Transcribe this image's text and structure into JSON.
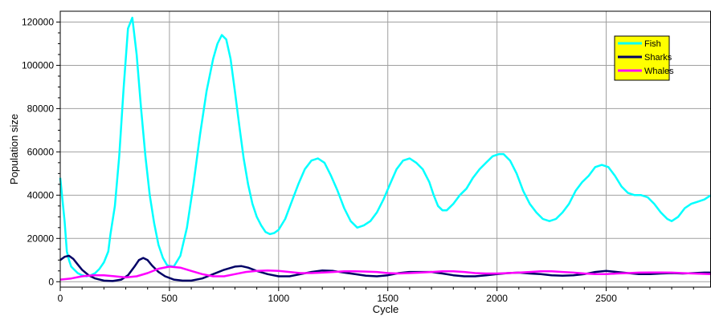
{
  "chart_data": {
    "type": "line",
    "title": "",
    "xlabel": "Cycle",
    "ylabel": "Population size",
    "xlim": [
      0,
      2980
    ],
    "ylim": [
      -2500,
      125000
    ],
    "xticks": [
      0,
      500,
      1000,
      1500,
      2000,
      2500
    ],
    "yticks": [
      0,
      20000,
      40000,
      60000,
      80000,
      100000,
      120000
    ],
    "grid": true,
    "legend_position": "top-right",
    "series": [
      {
        "name": "Fish",
        "color": "#00ffff",
        "points": [
          [
            0,
            48000
          ],
          [
            10,
            38000
          ],
          [
            20,
            28000
          ],
          [
            30,
            14000
          ],
          [
            40,
            10000
          ],
          [
            50,
            7000
          ],
          [
            60,
            6000
          ],
          [
            80,
            4000
          ],
          [
            100,
            3000
          ],
          [
            120,
            2500
          ],
          [
            140,
            3000
          ],
          [
            160,
            4000
          ],
          [
            180,
            6000
          ],
          [
            200,
            9000
          ],
          [
            220,
            14000
          ],
          [
            230,
            22000
          ],
          [
            250,
            35000
          ],
          [
            270,
            58000
          ],
          [
            290,
            89000
          ],
          [
            310,
            117000
          ],
          [
            330,
            122000
          ],
          [
            350,
            105000
          ],
          [
            370,
            80000
          ],
          [
            390,
            58000
          ],
          [
            410,
            40000
          ],
          [
            430,
            27000
          ],
          [
            450,
            17000
          ],
          [
            470,
            11000
          ],
          [
            490,
            7500
          ],
          [
            520,
            7000
          ],
          [
            550,
            12000
          ],
          [
            580,
            25000
          ],
          [
            610,
            45000
          ],
          [
            640,
            68000
          ],
          [
            670,
            88000
          ],
          [
            700,
            103000
          ],
          [
            720,
            110000
          ],
          [
            740,
            114000
          ],
          [
            760,
            112000
          ],
          [
            780,
            103000
          ],
          [
            800,
            88000
          ],
          [
            820,
            72000
          ],
          [
            840,
            57000
          ],
          [
            860,
            45000
          ],
          [
            880,
            36000
          ],
          [
            900,
            30000
          ],
          [
            920,
            26000
          ],
          [
            940,
            23000
          ],
          [
            960,
            22000
          ],
          [
            980,
            22500
          ],
          [
            1000,
            24000
          ],
          [
            1030,
            29000
          ],
          [
            1060,
            37000
          ],
          [
            1090,
            45000
          ],
          [
            1120,
            52000
          ],
          [
            1150,
            56000
          ],
          [
            1180,
            57000
          ],
          [
            1210,
            55000
          ],
          [
            1240,
            49000
          ],
          [
            1270,
            42000
          ],
          [
            1300,
            34000
          ],
          [
            1330,
            28000
          ],
          [
            1360,
            25000
          ],
          [
            1390,
            26000
          ],
          [
            1420,
            28000
          ],
          [
            1450,
            32000
          ],
          [
            1480,
            38000
          ],
          [
            1510,
            45000
          ],
          [
            1540,
            52000
          ],
          [
            1570,
            56000
          ],
          [
            1600,
            57000
          ],
          [
            1630,
            55000
          ],
          [
            1660,
            52000
          ],
          [
            1690,
            46000
          ],
          [
            1710,
            40000
          ],
          [
            1730,
            35000
          ],
          [
            1750,
            33000
          ],
          [
            1770,
            33000
          ],
          [
            1800,
            36000
          ],
          [
            1830,
            40000
          ],
          [
            1860,
            43000
          ],
          [
            1890,
            48000
          ],
          [
            1920,
            52000
          ],
          [
            1950,
            55000
          ],
          [
            1980,
            58000
          ],
          [
            2010,
            59000
          ],
          [
            2030,
            59000
          ],
          [
            2060,
            56000
          ],
          [
            2090,
            50000
          ],
          [
            2120,
            42000
          ],
          [
            2150,
            36000
          ],
          [
            2180,
            32000
          ],
          [
            2210,
            29000
          ],
          [
            2240,
            28000
          ],
          [
            2270,
            29000
          ],
          [
            2300,
            32000
          ],
          [
            2330,
            36000
          ],
          [
            2360,
            42000
          ],
          [
            2390,
            46000
          ],
          [
            2420,
            49000
          ],
          [
            2450,
            53000
          ],
          [
            2480,
            54000
          ],
          [
            2510,
            53000
          ],
          [
            2540,
            49000
          ],
          [
            2570,
            44000
          ],
          [
            2600,
            41000
          ],
          [
            2630,
            40000
          ],
          [
            2660,
            40000
          ],
          [
            2690,
            39000
          ],
          [
            2720,
            36000
          ],
          [
            2750,
            32000
          ],
          [
            2780,
            29000
          ],
          [
            2800,
            28000
          ],
          [
            2830,
            30000
          ],
          [
            2860,
            34000
          ],
          [
            2890,
            36000
          ],
          [
            2920,
            37000
          ],
          [
            2950,
            38000
          ],
          [
            2980,
            40000
          ]
        ]
      },
      {
        "name": "Sharks",
        "color": "#000066",
        "points": [
          [
            0,
            10000
          ],
          [
            20,
            11500
          ],
          [
            40,
            12000
          ],
          [
            60,
            10500
          ],
          [
            80,
            8000
          ],
          [
            100,
            5500
          ],
          [
            130,
            3000
          ],
          [
            160,
            1500
          ],
          [
            200,
            500
          ],
          [
            240,
            300
          ],
          [
            280,
            1000
          ],
          [
            310,
            3000
          ],
          [
            340,
            7000
          ],
          [
            360,
            10000
          ],
          [
            380,
            11000
          ],
          [
            400,
            10000
          ],
          [
            420,
            7500
          ],
          [
            450,
            4500
          ],
          [
            480,
            2500
          ],
          [
            520,
            1000
          ],
          [
            560,
            500
          ],
          [
            600,
            500
          ],
          [
            650,
            1500
          ],
          [
            700,
            3500
          ],
          [
            750,
            5500
          ],
          [
            800,
            7000
          ],
          [
            830,
            7200
          ],
          [
            860,
            6500
          ],
          [
            900,
            5000
          ],
          [
            950,
            3500
          ],
          [
            1000,
            2500
          ],
          [
            1050,
            2500
          ],
          [
            1100,
            3500
          ],
          [
            1150,
            4500
          ],
          [
            1200,
            5200
          ],
          [
            1250,
            5000
          ],
          [
            1300,
            4200
          ],
          [
            1350,
            3500
          ],
          [
            1400,
            2800
          ],
          [
            1450,
            2500
          ],
          [
            1500,
            3000
          ],
          [
            1550,
            4000
          ],
          [
            1600,
            4500
          ],
          [
            1650,
            4500
          ],
          [
            1700,
            4500
          ],
          [
            1750,
            3800
          ],
          [
            1800,
            3000
          ],
          [
            1850,
            2500
          ],
          [
            1900,
            2500
          ],
          [
            1950,
            3000
          ],
          [
            2000,
            3500
          ],
          [
            2050,
            4000
          ],
          [
            2100,
            4200
          ],
          [
            2150,
            3800
          ],
          [
            2200,
            3500
          ],
          [
            2250,
            3000
          ],
          [
            2300,
            2800
          ],
          [
            2350,
            3000
          ],
          [
            2400,
            3500
          ],
          [
            2450,
            4500
          ],
          [
            2500,
            5000
          ],
          [
            2550,
            4500
          ],
          [
            2600,
            4000
          ],
          [
            2650,
            3500
          ],
          [
            2700,
            3500
          ],
          [
            2750,
            3800
          ],
          [
            2800,
            4000
          ],
          [
            2850,
            3800
          ],
          [
            2900,
            4000
          ],
          [
            2950,
            4200
          ],
          [
            2980,
            4200
          ]
        ]
      },
      {
        "name": "Whales",
        "color": "#ff00ff",
        "points": [
          [
            0,
            1000
          ],
          [
            50,
            1500
          ],
          [
            100,
            2500
          ],
          [
            150,
            3000
          ],
          [
            200,
            3000
          ],
          [
            250,
            2500
          ],
          [
            300,
            2000
          ],
          [
            350,
            2500
          ],
          [
            400,
            4000
          ],
          [
            450,
            6000
          ],
          [
            500,
            7000
          ],
          [
            550,
            6500
          ],
          [
            600,
            5000
          ],
          [
            650,
            3500
          ],
          [
            700,
            2500
          ],
          [
            750,
            2500
          ],
          [
            800,
            3500
          ],
          [
            850,
            4500
          ],
          [
            900,
            5000
          ],
          [
            950,
            5200
          ],
          [
            1000,
            5000
          ],
          [
            1050,
            4500
          ],
          [
            1100,
            4000
          ],
          [
            1150,
            4000
          ],
          [
            1200,
            4200
          ],
          [
            1250,
            4500
          ],
          [
            1300,
            4800
          ],
          [
            1350,
            4800
          ],
          [
            1400,
            4700
          ],
          [
            1450,
            4500
          ],
          [
            1500,
            4000
          ],
          [
            1550,
            3800
          ],
          [
            1600,
            4000
          ],
          [
            1650,
            4200
          ],
          [
            1700,
            4500
          ],
          [
            1750,
            4800
          ],
          [
            1800,
            4800
          ],
          [
            1850,
            4500
          ],
          [
            1900,
            4000
          ],
          [
            1950,
            3800
          ],
          [
            2000,
            3800
          ],
          [
            2050,
            4000
          ],
          [
            2100,
            4200
          ],
          [
            2150,
            4500
          ],
          [
            2200,
            4800
          ],
          [
            2250,
            4800
          ],
          [
            2300,
            4500
          ],
          [
            2350,
            4200
          ],
          [
            2400,
            3800
          ],
          [
            2450,
            3500
          ],
          [
            2500,
            3500
          ],
          [
            2550,
            3800
          ],
          [
            2600,
            4000
          ],
          [
            2650,
            4200
          ],
          [
            2700,
            4300
          ],
          [
            2750,
            4300
          ],
          [
            2800,
            4200
          ],
          [
            2850,
            4000
          ],
          [
            2900,
            3800
          ],
          [
            2950,
            3600
          ],
          [
            2980,
            3500
          ]
        ]
      }
    ]
  }
}
